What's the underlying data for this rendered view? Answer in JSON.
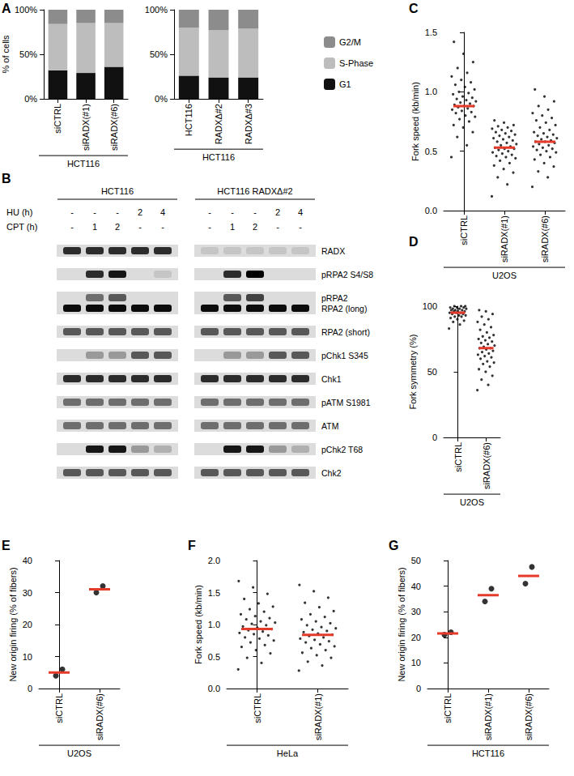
{
  "chart_data": [
    {
      "panel": "A",
      "type": "bar",
      "stacked": true,
      "categories": [
        "siCTRL",
        "siRADX(#1)",
        "siRADX(#6)"
      ],
      "xlabel": "HCT116",
      "ylabel": "% of cells",
      "ylim": [
        0,
        100
      ],
      "yticks": [
        {
          "value": 0,
          "label": "0%"
        },
        {
          "value": 50,
          "label": "50%"
        },
        {
          "value": 100,
          "label": "100%"
        }
      ],
      "series": [
        {
          "name": "G1",
          "color": "#111111",
          "values": [
            32,
            29,
            36
          ]
        },
        {
          "name": "S-Phase",
          "color": "#bdbdbd",
          "values": [
            52,
            56,
            49
          ]
        },
        {
          "name": "G2/M",
          "color": "#8c8c8c",
          "values": [
            16,
            15,
            15
          ]
        }
      ]
    },
    {
      "type": "bar",
      "stacked": true,
      "legend": "right",
      "categories": [
        "HCT116",
        "RADXΔ#2",
        "RADXΔ#3"
      ],
      "xlabel": "HCT116",
      "ylim": [
        0,
        100
      ],
      "yticks": [
        {
          "value": 0,
          "label": "0%"
        },
        {
          "value": 50,
          "label": "50%"
        },
        {
          "value": 100,
          "label": "100%"
        }
      ],
      "series": [
        {
          "name": "G1",
          "color": "#111111",
          "values": [
            26,
            24,
            24
          ]
        },
        {
          "name": "S-Phase",
          "color": "#bdbdbd",
          "values": [
            54,
            53,
            55
          ]
        },
        {
          "name": "G2/M",
          "color": "#8c8c8c",
          "values": [
            20,
            23,
            21
          ]
        }
      ]
    },
    {
      "panel": "C",
      "type": "scatter",
      "categories": [
        "siCTRL",
        "siRADX(#1)",
        "siRADX(#6)"
      ],
      "xlabel": "U2OS",
      "ylabel": "Fork speed (kb/min)",
      "ylim": [
        0,
        1.5
      ],
      "yticks": [
        {
          "value": 0,
          "label": "0.0"
        },
        {
          "value": 0.5,
          "label": "0.5"
        },
        {
          "value": 1,
          "label": "1.0"
        },
        {
          "value": 1.5,
          "label": "1.5"
        }
      ],
      "series": [
        {
          "type": "scatter",
          "color": "#000000",
          "values": [
            [
              0.45,
              0.55,
              0.62,
              0.66,
              0.7,
              0.72,
              0.75,
              0.77,
              0.79,
              0.8,
              0.82,
              0.83,
              0.84,
              0.85,
              0.86,
              0.87,
              0.88,
              0.88,
              0.89,
              0.9,
              0.91,
              0.92,
              0.93,
              0.94,
              0.95,
              0.96,
              0.98,
              0.99,
              1.0,
              1.02,
              1.04,
              1.06,
              1.08,
              1.1,
              1.13,
              1.16,
              1.2,
              1.25,
              1.32,
              1.42
            ],
            [
              0.12,
              0.22,
              0.28,
              0.32,
              0.35,
              0.38,
              0.4,
              0.42,
              0.44,
              0.45,
              0.46,
              0.47,
              0.48,
              0.49,
              0.5,
              0.51,
              0.52,
              0.52,
              0.53,
              0.54,
              0.55,
              0.56,
              0.57,
              0.58,
              0.59,
              0.6,
              0.61,
              0.62,
              0.63,
              0.64,
              0.65,
              0.66,
              0.67,
              0.68,
              0.69,
              0.7,
              0.71,
              0.72,
              0.74,
              0.76
            ],
            [
              0.2,
              0.28,
              0.33,
              0.37,
              0.4,
              0.43,
              0.45,
              0.47,
              0.49,
              0.5,
              0.51,
              0.52,
              0.53,
              0.54,
              0.55,
              0.56,
              0.57,
              0.58,
              0.58,
              0.59,
              0.6,
              0.61,
              0.62,
              0.63,
              0.64,
              0.65,
              0.66,
              0.68,
              0.7,
              0.72,
              0.74,
              0.76,
              0.78,
              0.8,
              0.82,
              0.85,
              0.88,
              0.92,
              0.96,
              1.02
            ]
          ]
        },
        {
          "type": "mean",
          "color": "#e5392a",
          "values": [
            0.88,
            0.53,
            0.58
          ]
        }
      ]
    },
    {
      "panel": "D",
      "type": "scatter",
      "categories": [
        "siCTRL",
        "siRADX(#6)"
      ],
      "xlabel": "U2OS",
      "ylabel": "Fork symmetry (%)",
      "ylim": [
        0,
        100
      ],
      "yticks": [
        0,
        50,
        100
      ],
      "series": [
        {
          "type": "scatter",
          "color": "#000000",
          "values": [
            [
              83,
              86,
              88,
              89,
              90,
              91,
              92,
              92,
              93,
              93,
              94,
              94,
              95,
              95,
              95,
              96,
              96,
              96,
              97,
              97,
              97,
              98,
              98,
              98,
              99,
              99,
              99,
              100,
              100,
              100
            ],
            [
              36,
              40,
              44,
              47,
              50,
              52,
              54,
              56,
              57,
              58,
              60,
              61,
              62,
              63,
              64,
              65,
              66,
              67,
              68,
              68,
              69,
              70,
              71,
              72,
              73,
              74,
              75,
              76,
              77,
              78,
              80,
              82,
              84,
              86,
              88,
              90,
              92,
              94,
              96,
              97
            ]
          ]
        },
        {
          "type": "mean",
          "color": "#e5392a",
          "values": [
            95,
            68
          ]
        }
      ]
    },
    {
      "panel": "E",
      "type": "scatter",
      "categories": [
        "siCTRL",
        "siRADX(#6)"
      ],
      "xlabel": "U2OS",
      "ylabel": "New origin firing (% of fibers)",
      "ylim": [
        0,
        40
      ],
      "yticks": [
        0,
        10,
        20,
        30,
        40
      ],
      "series": [
        {
          "type": "scatter",
          "color": "#000000",
          "values": [
            [
              4,
              6
            ],
            [
              30,
              32
            ]
          ]
        },
        {
          "type": "mean",
          "color": "#e5392a",
          "values": [
            5,
            31
          ]
        }
      ]
    },
    {
      "panel": "F",
      "type": "scatter",
      "categories": [
        "siCTRL",
        "siRADX(#1)"
      ],
      "xlabel": "HeLa",
      "ylabel": "Fork speed (kb/min)",
      "ylim": [
        0,
        2
      ],
      "yticks": [
        {
          "value": 0,
          "label": "0.0"
        },
        {
          "value": 0.5,
          "label": "0.5"
        },
        {
          "value": 1,
          "label": "1.0"
        },
        {
          "value": 1.5,
          "label": "1.5"
        },
        {
          "value": 2,
          "label": "2.0"
        }
      ],
      "series": [
        {
          "type": "scatter",
          "color": "#000000",
          "values": [
            [
              0.3,
              0.4,
              0.48,
              0.55,
              0.6,
              0.65,
              0.68,
              0.72,
              0.75,
              0.78,
              0.8,
              0.83,
              0.85,
              0.87,
              0.89,
              0.91,
              0.93,
              0.95,
              0.97,
              0.99,
              1.01,
              1.03,
              1.05,
              1.08,
              1.1,
              1.13,
              1.16,
              1.2,
              1.24,
              1.28,
              1.33,
              1.4,
              1.48,
              1.58,
              1.68
            ],
            [
              0.28,
              0.36,
              0.42,
              0.48,
              0.52,
              0.56,
              0.6,
              0.63,
              0.66,
              0.69,
              0.72,
              0.74,
              0.76,
              0.78,
              0.8,
              0.82,
              0.84,
              0.86,
              0.88,
              0.9,
              0.92,
              0.94,
              0.96,
              0.99,
              1.02,
              1.05,
              1.08,
              1.12,
              1.16,
              1.21,
              1.27,
              1.34,
              1.42,
              1.52,
              1.62
            ]
          ]
        },
        {
          "type": "mean",
          "color": "#e5392a",
          "values": [
            0.93,
            0.84
          ]
        }
      ]
    },
    {
      "panel": "G",
      "type": "scatter",
      "categories": [
        "siCTRL",
        "siRADX(#1)",
        "siRADX(#6)"
      ],
      "xlabel": "HCT116",
      "ylabel": "New origin firing (% of fibers)",
      "ylim": [
        0,
        50
      ],
      "yticks": [
        0,
        10,
        20,
        30,
        40,
        50
      ],
      "series": [
        {
          "type": "scatter",
          "color": "#000000",
          "values": [
            [
              21,
              22
            ],
            [
              34,
              39
            ],
            [
              41,
              47.5
            ]
          ]
        },
        {
          "type": "mean",
          "color": "#e5392a",
          "values": [
            21.5,
            36.5,
            44
          ]
        }
      ]
    }
  ],
  "blot": {
    "panel": "B",
    "groups": [
      {
        "label": "HCT116",
        "lanes": 5
      },
      {
        "label": "HCT116 RADXΔ#2",
        "lanes": 5
      }
    ],
    "treatments": [
      {
        "label": "HU (h)",
        "values": [
          "-",
          "-",
          "-",
          "2",
          "4",
          "-",
          "-",
          "-",
          "2",
          "4"
        ]
      },
      {
        "label": "CPT (h)",
        "values": [
          "-",
          "1",
          "2",
          "-",
          "-",
          "-",
          "1",
          "2",
          "-",
          "-"
        ]
      }
    ],
    "rows": [
      {
        "labels": [
          "RADX"
        ],
        "intensity": [
          [
            0.8,
            0.8,
            0.8,
            0.8,
            0.8,
            0.1,
            0.1,
            0.1,
            0.1,
            0.1
          ]
        ]
      },
      {
        "labels": [
          "pRPA2 S4/S8"
        ],
        "intensity": [
          [
            0,
            0.8,
            0.9,
            0,
            0.1,
            0,
            0.8,
            1,
            0,
            0
          ]
        ]
      },
      {
        "labels": [
          "pRPA2",
          "RPA2 (long)"
        ],
        "intensity": [
          [
            0,
            0.5,
            0.6,
            0,
            0,
            0,
            0.6,
            0.7,
            0,
            0
          ],
          [
            0.95,
            0.95,
            0.95,
            0.95,
            0.95,
            0.95,
            0.95,
            0.95,
            0.95,
            0.95
          ]
        ]
      },
      {
        "labels": [
          "RPA2 (short)"
        ],
        "intensity": [
          [
            0.6,
            0.6,
            0.6,
            0.6,
            0.6,
            0.6,
            0.6,
            0.6,
            0.6,
            0.6
          ]
        ]
      },
      {
        "labels": [
          "pChk1 S345"
        ],
        "intensity": [
          [
            0,
            0.3,
            0.3,
            0.6,
            0.6,
            0,
            0.3,
            0.3,
            0.6,
            0.6
          ]
        ]
      },
      {
        "labels": [
          "Chk1"
        ],
        "intensity": [
          [
            0.8,
            0.8,
            0.8,
            0.8,
            0.8,
            0.8,
            0.8,
            0.8,
            0.8,
            0.8
          ]
        ]
      },
      {
        "labels": [
          "pATM S1981"
        ],
        "intensity": [
          [
            0.5,
            0.5,
            0.5,
            0.5,
            0.5,
            0.5,
            0.5,
            0.5,
            0.5,
            0.5
          ]
        ]
      },
      {
        "labels": [
          "ATM"
        ],
        "intensity": [
          [
            0.5,
            0.5,
            0.5,
            0.5,
            0.5,
            0.5,
            0.5,
            0.5,
            0.5,
            0.5
          ]
        ]
      },
      {
        "labels": [
          "pChk2 T68"
        ],
        "intensity": [
          [
            0,
            0.9,
            0.9,
            0.3,
            0.2,
            0,
            0.9,
            0.9,
            0.3,
            0.2
          ]
        ]
      },
      {
        "labels": [
          "Chk2"
        ],
        "intensity": [
          [
            0.6,
            0.6,
            0.6,
            0.6,
            0.6,
            0.6,
            0.6,
            0.6,
            0.6,
            0.6
          ]
        ]
      }
    ]
  }
}
